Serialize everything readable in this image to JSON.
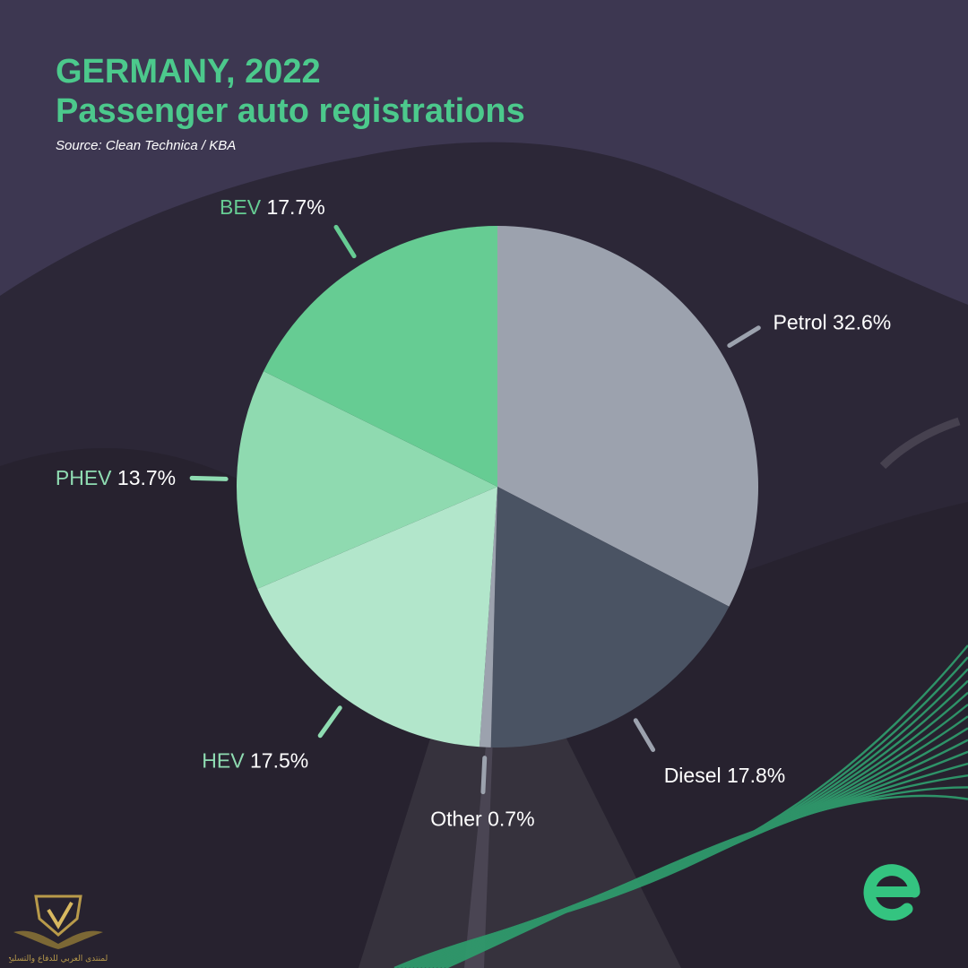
{
  "header": {
    "title_line1": "GERMANY, 2022",
    "title_line2": "Passenger auto registrations",
    "source": "Source: Clean Technica / KBA"
  },
  "chart_data": {
    "type": "pie",
    "title": "GERMANY, 2022 Passenger auto registrations",
    "slices": [
      {
        "label": "Petrol",
        "value": 32.6,
        "display": "32.6%",
        "color": "#9ca2ae",
        "label_color": "#ffffff"
      },
      {
        "label": "Diesel",
        "value": 17.8,
        "display": "17.8%",
        "color": "#4a5363",
        "label_color": "#ffffff"
      },
      {
        "label": "Other",
        "value": 0.7,
        "display": "0.7%",
        "color": "#9ca2ae",
        "label_color": "#ffffff"
      },
      {
        "label": "HEV",
        "value": 17.5,
        "display": "17.5%",
        "color": "#b2e6cb",
        "label_color": "#8fdcb2"
      },
      {
        "label": "PHEV",
        "value": 13.7,
        "display": "13.7%",
        "color": "#8fdab0",
        "label_color": "#8fdcb2"
      },
      {
        "label": "BEV",
        "value": 17.7,
        "display": "17.7%",
        "color": "#66cc93",
        "label_color": "#66cc93"
      }
    ],
    "start": "12 o'clock",
    "direction": "clockwise"
  },
  "branding": {
    "logo_icon": "e-logo-icon",
    "emblem_icon": "eagle-shield-emblem-icon",
    "emblem_caption": "المنتدى العربي للدفاع والتسليح"
  },
  "colors": {
    "accent": "#4cc98c",
    "background": "#3a3450"
  }
}
